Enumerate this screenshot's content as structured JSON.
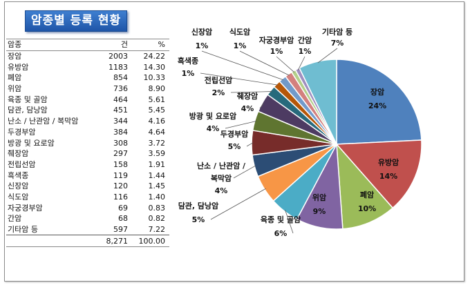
{
  "title": "암종별 등록 현황",
  "table": {
    "headers": [
      "암종",
      "건",
      "%"
    ],
    "rows": [
      [
        "장암",
        "2003",
        "24.22"
      ],
      [
        "유방암",
        "1183",
        "14.30"
      ],
      [
        "폐암",
        "854",
        "10.33"
      ],
      [
        "위암",
        "736",
        "8.90"
      ],
      [
        "육종 및 골암",
        "464",
        "5.61"
      ],
      [
        "담관, 담낭암",
        "451",
        "5.45"
      ],
      [
        "난소 / 난관암 / 복막암",
        "344",
        "4.16"
      ],
      [
        "두경부암",
        "384",
        "4.64"
      ],
      [
        "방광 및 요로암",
        "308",
        "3.72"
      ],
      [
        "췌장암",
        "297",
        "3.59"
      ],
      [
        "전립선암",
        "158",
        "1.91"
      ],
      [
        "흑색종",
        "119",
        "1.44"
      ],
      [
        "신장암",
        "120",
        "1.45"
      ],
      [
        "식도암",
        "116",
        "1.40"
      ],
      [
        "자궁경부암",
        "69",
        "0.83"
      ],
      [
        "간암",
        "68",
        "0.82"
      ],
      [
        "기타암 등",
        "597",
        "7.22"
      ]
    ],
    "total": [
      "",
      "8,271",
      "100.00"
    ]
  },
  "chart_data": {
    "type": "pie",
    "title": "암종별 등록 현황",
    "categories": [
      "장암",
      "유방암",
      "폐암",
      "위암",
      "육종 및 골암",
      "담관, 담낭암",
      "난소 / 난관암 / 복막암",
      "두경부암",
      "방광 및 요로암",
      "췌장암",
      "전립선암",
      "흑색종",
      "신장암",
      "식도암",
      "자궁경부암",
      "간암",
      "기타암 등"
    ],
    "values": [
      2003,
      1183,
      854,
      736,
      464,
      451,
      344,
      384,
      308,
      297,
      158,
      119,
      120,
      116,
      69,
      68,
      597
    ],
    "data_labels": [
      "24%",
      "14%",
      "10%",
      "9%",
      "6%",
      "5%",
      "4%",
      "5%",
      "4%",
      "4%",
      "2%",
      "1%",
      "1%",
      "1%",
      "1%",
      "1%",
      "7%"
    ],
    "colors": [
      "#4f81bd",
      "#c0504d",
      "#9bbb59",
      "#8064a2",
      "#4bacc6",
      "#f79646",
      "#2c4d75",
      "#772c2a",
      "#5f7530",
      "#4d3b62",
      "#276a7c",
      "#b65708",
      "#729aca",
      "#d3807e",
      "#b3cf8a",
      "#a08fc0",
      "#6fbdd1"
    ]
  }
}
